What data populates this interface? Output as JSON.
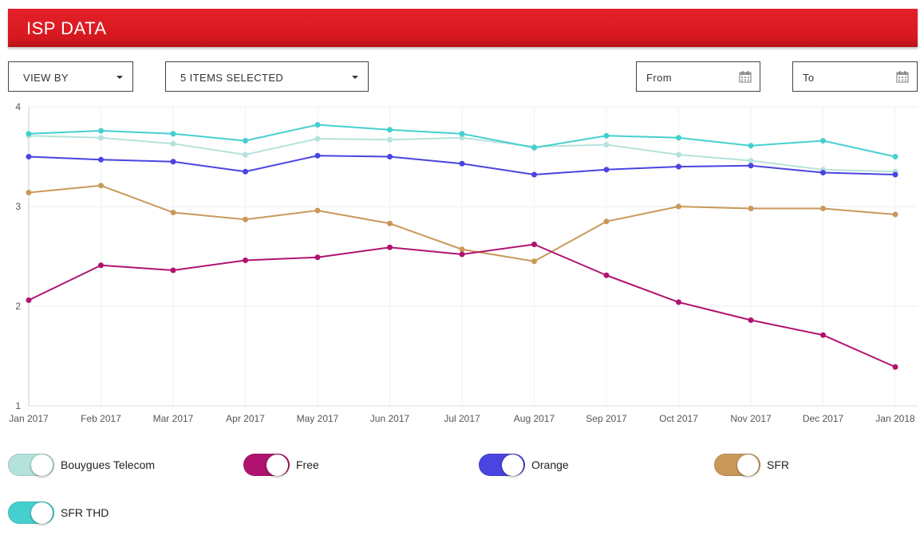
{
  "header": {
    "title": "ISP DATA"
  },
  "controls": {
    "view_by": "VIEW BY",
    "items_selected": "5 ITEMS SELECTED",
    "from_label": "From",
    "to_label": "To"
  },
  "legend": [
    {
      "label": "Bouygues Telecom",
      "color": "#b6e2dc"
    },
    {
      "label": "Free",
      "color": "#b0136f"
    },
    {
      "label": "Orange",
      "color": "#4a44e0"
    },
    {
      "label": "SFR",
      "color": "#c9995a"
    },
    {
      "label": "SFR THD",
      "color": "#45d0cf"
    }
  ],
  "chart_data": {
    "type": "line",
    "categories": [
      "Jan 2017",
      "Feb 2017",
      "Mar 2017",
      "Apr 2017",
      "May 2017",
      "Jun 2017",
      "Jul 2017",
      "Aug 2017",
      "Sep 2017",
      "Oct 2017",
      "Nov 2017",
      "Dec 2017",
      "Jan 2018"
    ],
    "ylim": [
      1,
      4
    ],
    "yticks": [
      "1",
      "2",
      "3",
      "4"
    ],
    "grid": true,
    "series": [
      {
        "name": "Bouygues Telecom",
        "color": "#b6e2dc",
        "values": [
          3.71,
          3.69,
          3.63,
          3.52,
          3.68,
          3.67,
          3.69,
          3.6,
          3.62,
          3.52,
          3.46,
          3.37,
          3.35
        ]
      },
      {
        "name": "SFR THD",
        "color": "#45d0cf",
        "values": [
          3.73,
          3.76,
          3.73,
          3.66,
          3.82,
          3.77,
          3.73,
          3.59,
          3.71,
          3.69,
          3.61,
          3.66,
          3.5
        ]
      },
      {
        "name": "Orange",
        "color": "#4a44e0",
        "values": [
          3.5,
          3.47,
          3.45,
          3.35,
          3.51,
          3.5,
          3.43,
          3.32,
          3.37,
          3.4,
          3.41,
          3.34,
          3.32
        ]
      },
      {
        "name": "SFR",
        "color": "#c9995a",
        "values": [
          3.14,
          3.21,
          2.94,
          2.87,
          2.96,
          2.83,
          2.57,
          2.45,
          2.85,
          3.0,
          2.98,
          2.98,
          2.92
        ]
      },
      {
        "name": "Free",
        "color": "#b0136f",
        "values": [
          2.06,
          2.41,
          2.36,
          2.46,
          2.49,
          2.59,
          2.52,
          2.62,
          2.31,
          2.04,
          1.86,
          1.71,
          1.39
        ]
      }
    ]
  }
}
